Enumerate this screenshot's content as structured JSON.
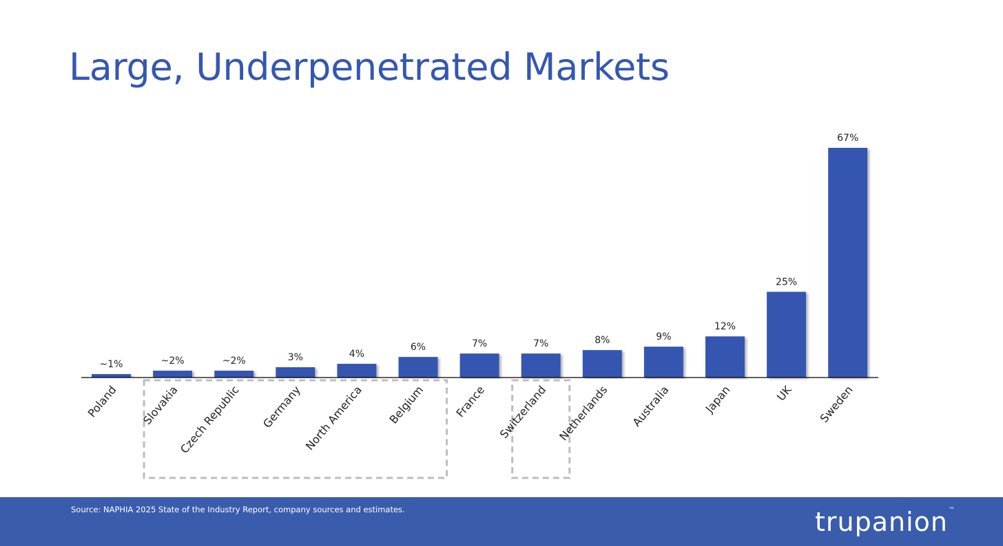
{
  "slide": {
    "title": "Large, Underpenetrated Markets",
    "source": "Source: NAPHIA 2025 State of the Industry Report, company sources and estimates.",
    "brand": "trupanion",
    "brand_tm": "™"
  },
  "colors": {
    "title": "#3457b0",
    "bar": "#3457b0",
    "footer": "#3a5cad",
    "grouping_box": "#bdbdbd"
  },
  "chart_data": {
    "type": "bar",
    "categories": [
      "Poland",
      "Slovakia",
      "Czech Republic",
      "Germany",
      "North America",
      "Belgium",
      "France",
      "Switzerland",
      "Netherlands",
      "Australia",
      "Japan",
      "UK",
      "Sweden"
    ],
    "values": [
      1,
      2,
      2,
      3,
      4,
      6,
      7,
      7,
      8,
      9,
      12,
      25,
      67
    ],
    "data_labels": [
      "~1%",
      "~2%",
      "~2%",
      "3%",
      "4%",
      "6%",
      "7%",
      "7%",
      "8%",
      "9%",
      "12%",
      "25%",
      "67%"
    ],
    "ylim": [
      0,
      67
    ],
    "grid": false,
    "groupings": [
      {
        "from": "Slovakia",
        "to": "Belgium",
        "style": "dashed-box"
      },
      {
        "from": "Switzerland",
        "to": "Switzerland",
        "style": "dashed-box"
      }
    ]
  }
}
